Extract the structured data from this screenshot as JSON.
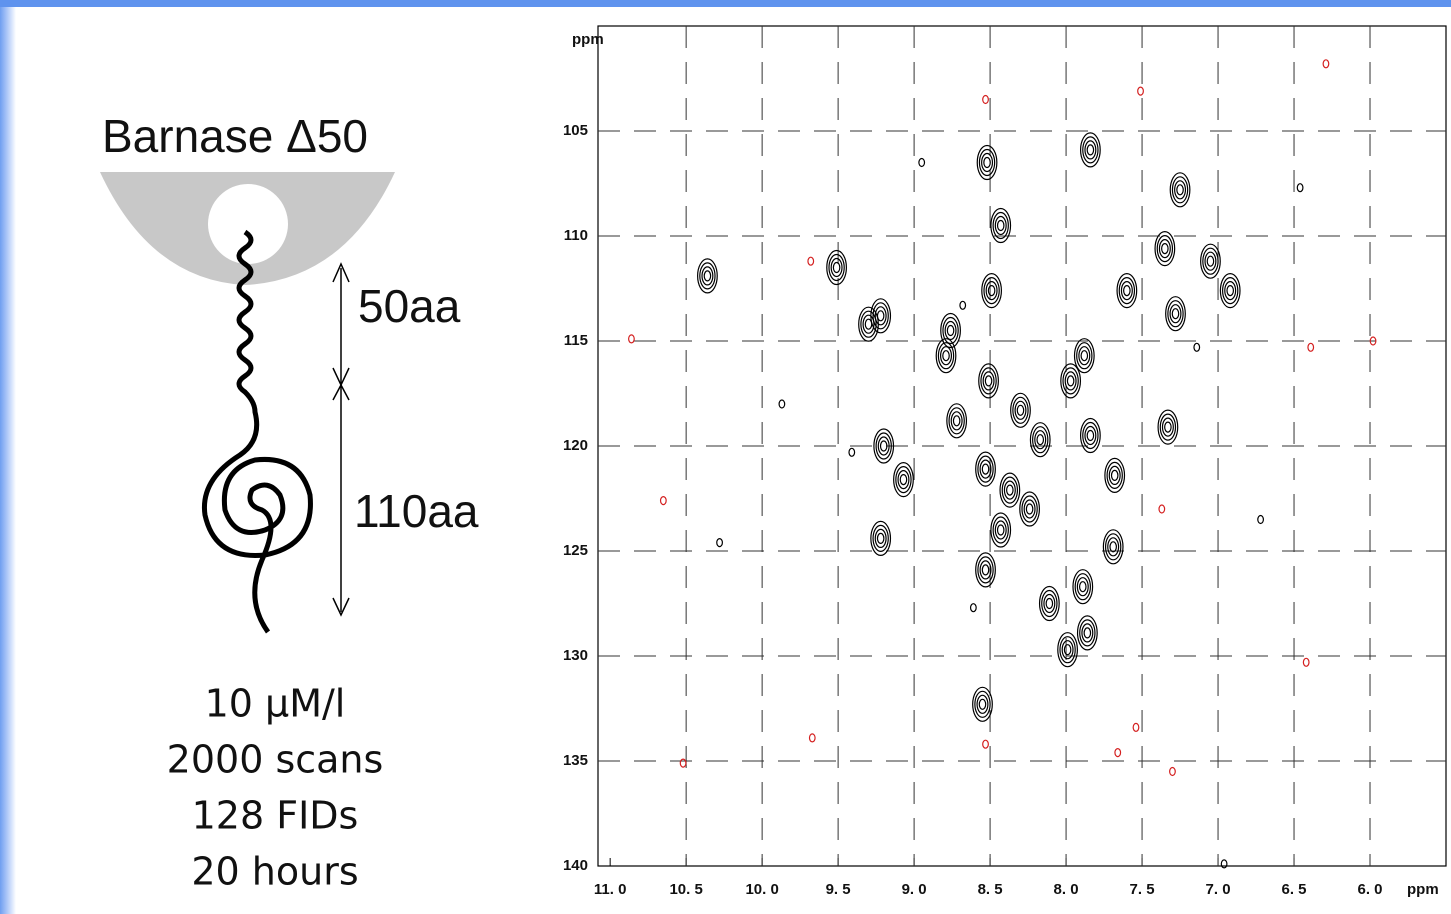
{
  "diagram": {
    "title": "Barnase Δ50",
    "segment_top": "50aa",
    "segment_bottom": "110aa",
    "notes": [
      "10 μM/l",
      "2000 scans",
      "128 FIDs",
      "20 hours"
    ]
  },
  "chart_data": {
    "type": "scatter",
    "xlabel": "ppm",
    "ylabel": "ppm",
    "xlim": [
      11.08,
      5.5
    ],
    "ylim": [
      100,
      140
    ],
    "xticks": [
      {
        "value": 11.0,
        "label": "11. 0"
      },
      {
        "value": 10.5,
        "label": "10. 5"
      },
      {
        "value": 10.0,
        "label": "10. 0"
      },
      {
        "value": 9.5,
        "label": "9. 5"
      },
      {
        "value": 9.0,
        "label": "9. 0"
      },
      {
        "value": 8.5,
        "label": "8. 5"
      },
      {
        "value": 8.0,
        "label": "8. 0"
      },
      {
        "value": 7.5,
        "label": "7. 5"
      },
      {
        "value": 7.0,
        "label": "7. 0"
      },
      {
        "value": 6.5,
        "label": "6. 5"
      },
      {
        "value": 6.0,
        "label": "6. 0"
      }
    ],
    "yticks": [
      105,
      110,
      115,
      120,
      125,
      130,
      135,
      140
    ],
    "grid": true,
    "series": [
      {
        "color": "#000000",
        "x": [
          10.36,
          9.51,
          9.22,
          9.3,
          8.76,
          8.79,
          8.52,
          8.43,
          8.49,
          7.84,
          7.25,
          7.35,
          7.6,
          7.05,
          6.92,
          7.28,
          7.88,
          7.97,
          8.51,
          8.72,
          9.2,
          8.3,
          8.17,
          7.84,
          7.33,
          9.07,
          8.53,
          8.37,
          8.24,
          8.43,
          7.68,
          9.22,
          7.69,
          8.53,
          8.11,
          7.89,
          7.99,
          8.55,
          7.86,
          8.95,
          8.68,
          9.87,
          9.41,
          7.14,
          6.72,
          6.46,
          6.96,
          8.61,
          10.28
        ],
        "values": [
          111.9,
          111.5,
          113.8,
          114.2,
          114.5,
          115.7,
          106.5,
          109.5,
          112.6,
          105.9,
          107.8,
          110.6,
          112.6,
          111.2,
          112.6,
          113.7,
          115.7,
          116.9,
          116.9,
          118.8,
          120.0,
          118.3,
          119.7,
          119.5,
          119.1,
          121.6,
          121.1,
          122.1,
          123.0,
          124.0,
          121.4,
          124.4,
          124.8,
          125.9,
          127.5,
          126.7,
          129.7,
          132.3,
          128.9,
          106.5,
          113.3,
          118.0,
          120.3,
          115.3,
          123.5,
          107.7,
          139.9,
          127.7,
          124.6
        ]
      },
      {
        "color": "#d42020",
        "x": [
          8.53,
          7.51,
          9.68,
          10.86,
          6.39,
          5.98,
          10.65,
          7.37,
          9.67,
          10.52,
          8.53,
          7.66,
          7.3,
          7.54,
          6.42,
          6.29
        ],
        "values": [
          103.5,
          103.1,
          111.2,
          114.9,
          115.3,
          115.0,
          122.6,
          123.0,
          133.9,
          135.1,
          134.2,
          134.6,
          135.5,
          133.4,
          130.3,
          101.8
        ]
      }
    ]
  }
}
